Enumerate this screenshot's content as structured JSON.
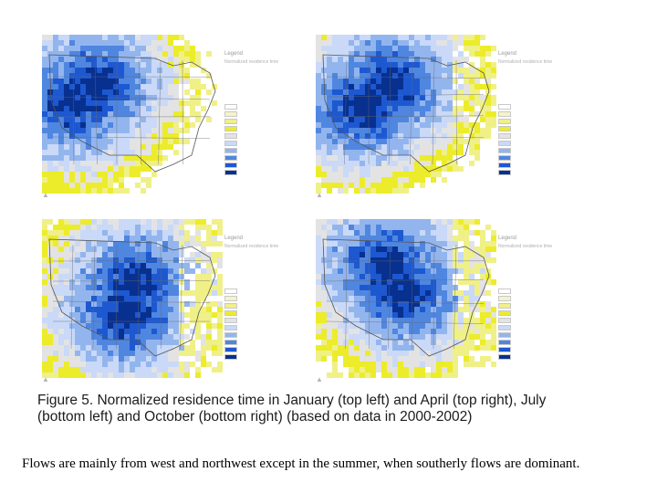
{
  "figure": {
    "panels": [
      {
        "id": "january",
        "label": "January",
        "month_index": 0
      },
      {
        "id": "april",
        "label": "April",
        "month_index": 1
      },
      {
        "id": "july",
        "label": "July",
        "month_index": 2
      },
      {
        "id": "october",
        "label": "October",
        "month_index": 3
      }
    ],
    "legend": {
      "title": "Legend",
      "subtitle": "Normalized residence time",
      "colors": [
        "#ffffff",
        "#f4f4c6",
        "#f0f088",
        "#ecec2a",
        "#e3e3e3",
        "#c9d9f7",
        "#93b5ee",
        "#4f86e0",
        "#1d58d1",
        "#08308f"
      ]
    },
    "map_credit": "▲",
    "caption_line1": "Figure 5. Normalized residence time in January (top left) and April (top right), July",
    "caption_line2": "(bottom left) and October (bottom right) (based on data in 2000-2002)"
  },
  "text": {
    "paragraph": "Flows are mainly from west and northwest except in the summer, when southerly flows are dominant."
  }
}
